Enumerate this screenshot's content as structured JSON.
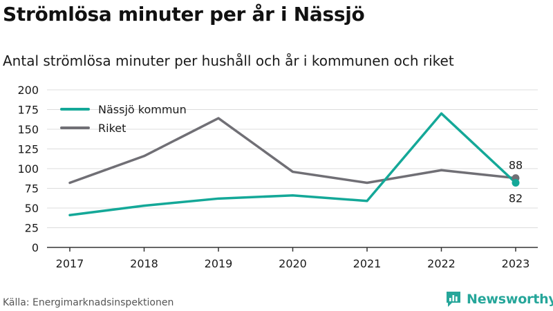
{
  "header": {
    "title": "Strömlösa minuter per år i Nässjö",
    "subtitle": "Antal strömlösa minuter per hushåll och år i kommunen och riket"
  },
  "footer": {
    "source": "Källa: Energimarknadsinspektionen",
    "brand": "Newsworthy"
  },
  "colors": {
    "nassjo": "#14a898",
    "riket": "#706f75",
    "grid": "#dcdcdc",
    "brand": "#26a69a"
  },
  "chart_data": {
    "type": "line",
    "x": [
      "2017",
      "2018",
      "2019",
      "2020",
      "2021",
      "2022",
      "2023"
    ],
    "ylim": [
      0,
      200
    ],
    "yticks": [
      0,
      25,
      50,
      75,
      100,
      125,
      150,
      175,
      200
    ],
    "grid": true,
    "legend_position": "top-left",
    "series": [
      {
        "name": "Nässjö kommun",
        "values": [
          41,
          53,
          62,
          66,
          59,
          170,
          82
        ],
        "end_label": "82"
      },
      {
        "name": "Riket",
        "values": [
          82,
          116,
          164,
          96,
          82,
          98,
          88
        ],
        "end_label": "88"
      }
    ]
  }
}
